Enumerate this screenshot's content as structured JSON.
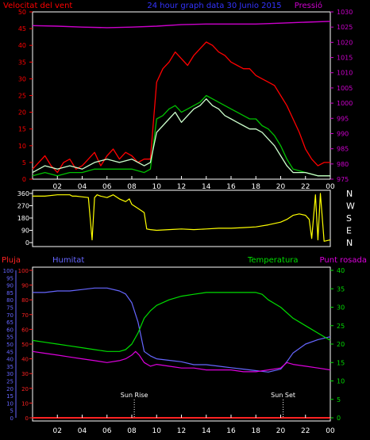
{
  "header": {
    "left_label": "Velocitat del vent",
    "title": "24 hour graph data  30 Junio 2015",
    "right_label": "Pressió",
    "left_color": "#ff0000",
    "title_color": "#3333ff",
    "right_color": "#cc00cc"
  },
  "bottom_labels": {
    "rain": "Pluja",
    "humidity": "Humitat",
    "temperature": "Temperatura",
    "dewpoint": "Punt rosada",
    "rain_color": "#ff2222",
    "humidity_color": "#6666ff",
    "temperature_color": "#00dd00",
    "dewpoint_color": "#dd00dd"
  },
  "annotations": {
    "sunrise": "Sun Rise",
    "sunset": "Sun Set",
    "sunrise_hour": 8.2,
    "sunset_hour": 20.2
  },
  "chart_data": [
    {
      "type": "line",
      "panel": "wind",
      "x_ticks": [
        "02",
        "04",
        "06",
        "08",
        "10",
        "12",
        "14",
        "16",
        "18",
        "20",
        "22",
        "00"
      ],
      "x_tick_hours": [
        2,
        4,
        6,
        8,
        10,
        12,
        14,
        16,
        18,
        20,
        22,
        24
      ],
      "x_range_hours": [
        0,
        24
      ],
      "y_left": {
        "ticks": [
          0,
          5,
          10,
          15,
          20,
          25,
          30,
          35,
          40,
          45,
          50
        ],
        "range": [
          0,
          50
        ],
        "color": "#ff0000"
      },
      "y_right": {
        "ticks": [
          975,
          980,
          985,
          990,
          995,
          1000,
          1005,
          1010,
          1015,
          1020,
          1025,
          1030
        ],
        "range": [
          975,
          1030
        ],
        "color": "#cc00cc"
      },
      "series": [
        {
          "role": "gust",
          "color": "#ff0000",
          "x": [
            0,
            0.5,
            1,
            1.5,
            2,
            2.5,
            3,
            3.5,
            4,
            4.5,
            5,
            5.5,
            6,
            6.5,
            7,
            7.5,
            8,
            8.5,
            9,
            9.5,
            10,
            10.5,
            11,
            11.5,
            12,
            12.5,
            13,
            13.5,
            14,
            14.5,
            15,
            15.5,
            16,
            16.5,
            17,
            17.5,
            18,
            18.5,
            19,
            19.5,
            20,
            20.5,
            21,
            21.5,
            22,
            22.5,
            23,
            23.5,
            24
          ],
          "values": [
            3,
            5,
            7,
            4,
            2,
            5,
            6,
            3,
            4,
            6,
            8,
            4,
            7,
            9,
            6,
            8,
            7,
            5,
            6,
            6,
            29,
            33,
            35,
            38,
            36,
            34,
            37,
            39,
            41,
            40,
            38,
            37,
            35,
            34,
            33,
            33,
            31,
            30,
            29,
            28,
            25,
            22,
            18,
            14,
            9,
            6,
            4,
            5,
            5
          ]
        },
        {
          "role": "average",
          "color": "#00c000",
          "x": [
            0,
            1,
            2,
            3,
            4,
            5,
            6,
            7,
            8,
            9,
            9.5,
            10,
            10.5,
            11,
            11.5,
            12,
            12.5,
            13,
            13.5,
            14,
            14.5,
            15,
            15.5,
            16,
            16.5,
            17,
            17.5,
            18,
            18.5,
            19,
            19.5,
            20,
            20.5,
            21,
            22,
            23,
            24
          ],
          "values": [
            1,
            2,
            1,
            2,
            2,
            3,
            3,
            3,
            3,
            2,
            3,
            18,
            19,
            21,
            22,
            20,
            21,
            22,
            23,
            25,
            24,
            23,
            22,
            21,
            20,
            19,
            18,
            18,
            16,
            15,
            13,
            10,
            6,
            3,
            2,
            1,
            1
          ]
        },
        {
          "role": "wind-speed",
          "color": "#ccffcc",
          "x": [
            0,
            1,
            2,
            3,
            4,
            5,
            6,
            7,
            8,
            9,
            9.5,
            10,
            10.5,
            11,
            11.5,
            12,
            12.5,
            13,
            13.5,
            14,
            14.5,
            15,
            15.5,
            16,
            16.5,
            17,
            17.5,
            18,
            18.5,
            19,
            19.5,
            20,
            20.5,
            21,
            22,
            23,
            24
          ],
          "values": [
            2,
            4,
            3,
            4,
            3,
            5,
            6,
            5,
            6,
            4,
            5,
            14,
            16,
            18,
            20,
            17,
            19,
            21,
            22,
            24,
            22,
            21,
            19,
            18,
            17,
            16,
            15,
            15,
            14,
            12,
            10,
            7,
            4,
            2,
            2,
            1,
            1
          ]
        },
        {
          "role": "pressure",
          "color": "#cc00cc",
          "axis": "right",
          "x": [
            0,
            2,
            4,
            6,
            8,
            10,
            12,
            14,
            16,
            18,
            20,
            22,
            24
          ],
          "values": [
            1025.5,
            1025.3,
            1025.0,
            1024.8,
            1025.0,
            1025.3,
            1025.8,
            1026.0,
            1026.0,
            1026.0,
            1026.3,
            1026.6,
            1026.9
          ]
        }
      ]
    },
    {
      "type": "line",
      "panel": "direction",
      "y_left": {
        "ticks": [
          0,
          90,
          180,
          270,
          360
        ],
        "range": [
          0,
          360
        ]
      },
      "y_right_labels": [
        "N",
        "W",
        "S",
        "E",
        "N"
      ],
      "series": [
        {
          "role": "wind-direction",
          "color": "#ffff00",
          "x": [
            0,
            1,
            2,
            3,
            3.2,
            3.5,
            4,
            4.5,
            4.8,
            5,
            5.2,
            5.5,
            6,
            6.5,
            7,
            7.5,
            7.8,
            8,
            8.5,
            9,
            9.2,
            9.5,
            10,
            11,
            12,
            13,
            14,
            15,
            16,
            17,
            18,
            19,
            20,
            20.5,
            21,
            21.5,
            22,
            22.3,
            22.5,
            22.8,
            23,
            23.2,
            23.5,
            24
          ],
          "values": [
            340,
            340,
            350,
            350,
            340,
            340,
            335,
            330,
            20,
            330,
            350,
            340,
            330,
            350,
            320,
            300,
            320,
            280,
            250,
            220,
            100,
            95,
            90,
            95,
            100,
            95,
            100,
            105,
            105,
            110,
            115,
            130,
            150,
            170,
            200,
            210,
            200,
            170,
            30,
            350,
            20,
            360,
            10,
            20
          ]
        }
      ]
    },
    {
      "type": "line",
      "panel": "humidity-temperature",
      "y_rain": {
        "ticks": [
          0,
          5,
          10,
          15,
          20,
          25,
          30,
          35,
          40,
          45,
          50,
          55,
          60,
          65,
          70,
          75,
          80,
          85,
          90,
          95,
          100
        ],
        "range": [
          0,
          100
        ]
      },
      "y_humidity": {
        "ticks": [
          0,
          10,
          20,
          30,
          40,
          50,
          60,
          70,
          80,
          90,
          100
        ],
        "range": [
          0,
          100
        ]
      },
      "y_temperature": {
        "ticks": [
          0,
          5,
          10,
          15,
          20,
          25,
          30,
          35,
          40
        ],
        "range": [
          0,
          40
        ]
      },
      "series": [
        {
          "role": "humidity",
          "color": "#6666ff",
          "axis": "humidity",
          "x": [
            0,
            1,
            2,
            3,
            4,
            5,
            6,
            7,
            7.5,
            8,
            8.5,
            9,
            9.5,
            10,
            11,
            12,
            13,
            14,
            15,
            16,
            17,
            18,
            19,
            20,
            20.5,
            21,
            22,
            23,
            24
          ],
          "values": [
            85,
            85,
            86,
            86,
            87,
            88,
            88,
            86,
            84,
            78,
            65,
            45,
            42,
            40,
            39,
            38,
            36,
            36,
            35,
            34,
            33,
            32,
            31,
            33,
            38,
            44,
            50,
            53,
            55
          ]
        },
        {
          "role": "temperature",
          "color": "#00dd00",
          "axis": "temperature",
          "x": [
            0,
            1,
            2,
            3,
            4,
            5,
            6,
            7,
            7.5,
            8,
            8.5,
            9,
            9.5,
            10,
            11,
            12,
            13,
            14,
            15,
            16,
            17,
            18,
            18.5,
            19,
            20,
            21,
            22,
            23,
            24
          ],
          "values": [
            21,
            20.5,
            20,
            19.5,
            19,
            18.5,
            18,
            18,
            18.5,
            20,
            23,
            27,
            29,
            30.5,
            32,
            33,
            33.5,
            34,
            34,
            34,
            34,
            34,
            33.5,
            32,
            30,
            27,
            25,
            23,
            21
          ]
        },
        {
          "role": "dew-point",
          "color": "#dd00dd",
          "axis": "temperature",
          "x": [
            0,
            1,
            2,
            3,
            4,
            5,
            6,
            7,
            7.5,
            8,
            8.3,
            8.6,
            9,
            9.5,
            10,
            11,
            12,
            13,
            14,
            15,
            16,
            17,
            18,
            19,
            20,
            20.5,
            21,
            22,
            23,
            24
          ],
          "values": [
            18,
            17.5,
            17,
            16.5,
            16,
            15.5,
            15,
            15.5,
            16,
            17,
            18,
            17,
            15,
            14,
            14.5,
            14,
            13.5,
            13.5,
            13,
            13,
            13,
            12.5,
            12.5,
            13,
            13.5,
            15,
            14.5,
            14,
            13.5,
            13
          ]
        },
        {
          "role": "rain",
          "color": "#ff2222",
          "axis": "rain",
          "x": [
            0,
            24
          ],
          "values": [
            0,
            0
          ]
        }
      ]
    }
  ]
}
